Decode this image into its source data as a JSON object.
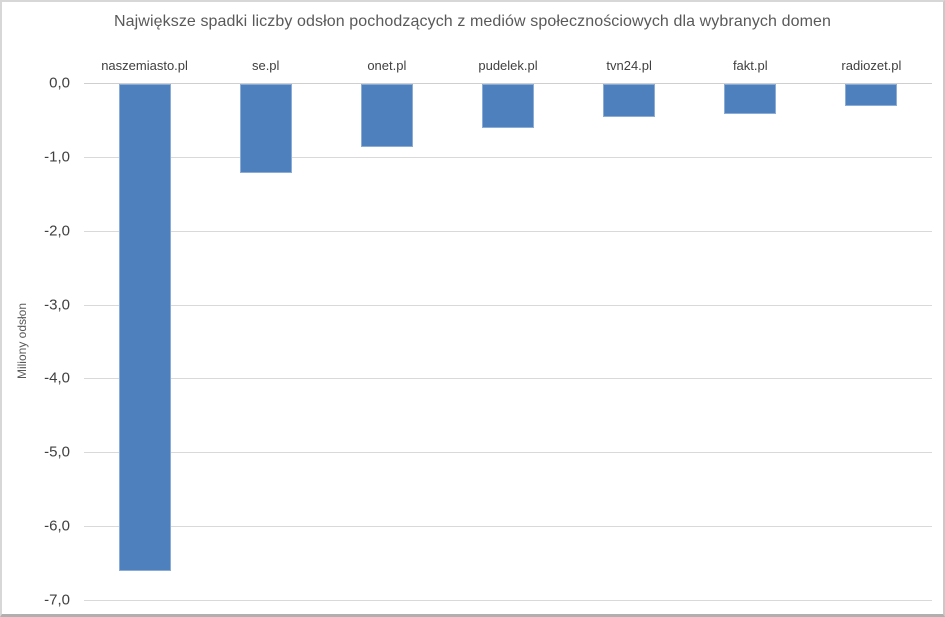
{
  "chart_data": {
    "type": "bar",
    "title": "Największe spadki liczby odsłon pochodzących z mediów społecznościowych dla wybranych domen",
    "ylabel": "Miliony odsłon",
    "xlabel": "",
    "categories": [
      "naszemiasto.pl",
      "se.pl",
      "onet.pl",
      "pudelek.pl",
      "tvn24.pl",
      "fakt.pl",
      "radiozet.pl"
    ],
    "values": [
      -6.6,
      -1.2,
      -0.85,
      -0.6,
      -0.45,
      -0.4,
      -0.3
    ],
    "ylim": [
      -7.0,
      0.0
    ],
    "ytick_step": 1.0,
    "ytick_labels": [
      "0,0",
      "-1,0",
      "-2,0",
      "-3,0",
      "-4,0",
      "-5,0",
      "-6,0",
      "-7,0"
    ],
    "grid": true,
    "legend_position": "none",
    "colors": {
      "bar": "#4e80bd",
      "gridline": "#d9d9d9",
      "zero_line": "#cfcfcf",
      "tick_label": "#404040",
      "category_label": "#404040",
      "title": "#595959",
      "background": "#ffffff"
    }
  }
}
